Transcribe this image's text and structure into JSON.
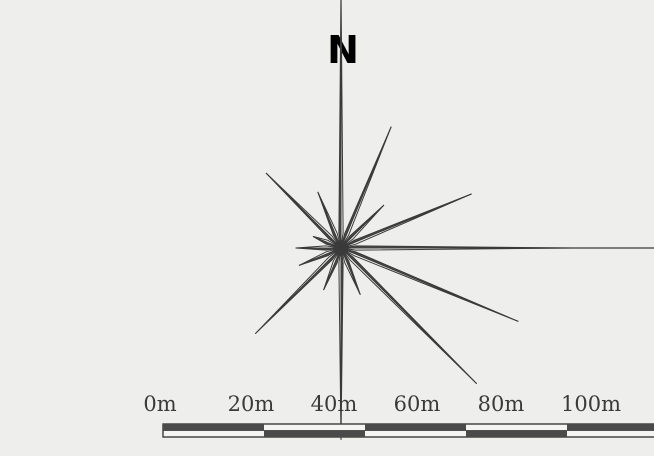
{
  "north_label": "N",
  "colors": {
    "background": "#eeeeec",
    "ink": "#4a4a4a",
    "line": "#3a3a3a",
    "fill_light": "#f4f4f2"
  },
  "rose": {
    "directions_deg": [
      0,
      22.5,
      45,
      67.5,
      90,
      112.5,
      135,
      157.5,
      180,
      202.5,
      225,
      247.5,
      270,
      292.5,
      315,
      337.5
    ],
    "outer_lengths_m": [
      52,
      26,
      12,
      28,
      46,
      38,
      38,
      10,
      38,
      9,
      24,
      9,
      9,
      6,
      21,
      12
    ],
    "inner_lengths_m": [
      3,
      3,
      3,
      3,
      3,
      3,
      3,
      3,
      3,
      3,
      3,
      3,
      3,
      3,
      3,
      3
    ],
    "tail_length_m": 72,
    "tail_direction_deg": 90
  },
  "scale_bar": {
    "ticks": [
      "0m",
      "20m",
      "40m",
      "60m",
      "80m",
      "100m"
    ],
    "segment_m": 20,
    "segments": 5
  }
}
